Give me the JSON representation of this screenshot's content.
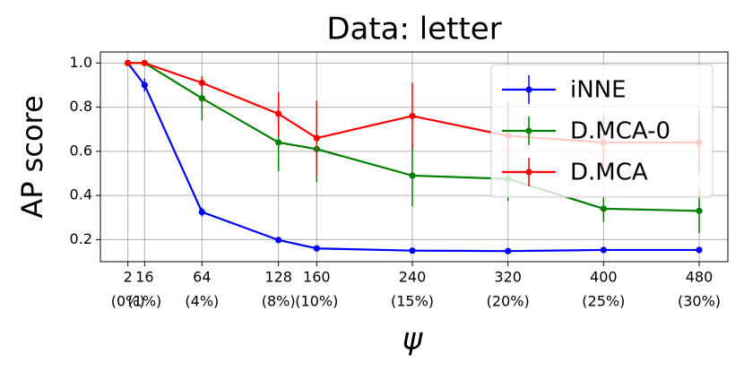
{
  "chart_data": {
    "type": "line",
    "title": "Data: letter",
    "x_label": "ψ",
    "y_label": "AP score",
    "x": [
      2,
      16,
      64,
      128,
      160,
      240,
      320,
      400,
      480
    ],
    "series": [
      {
        "name": "iNNE",
        "color": "#0000ff",
        "values": [
          1.0,
          0.9,
          0.325,
          0.198,
          0.16,
          0.15,
          0.148,
          0.153,
          0.153
        ],
        "errors": [
          0,
          0.03,
          0.02,
          0.01,
          0.01,
          0.01,
          0.01,
          0.01,
          0.01
        ]
      },
      {
        "name": "D.MCA-0",
        "color": "#008000",
        "values": [
          1.0,
          1.0,
          0.84,
          0.64,
          0.61,
          0.49,
          0.475,
          0.34,
          0.33
        ],
        "errors": [
          0,
          0.01,
          0.1,
          0.13,
          0.15,
          0.14,
          0.1,
          0.06,
          0.1
        ]
      },
      {
        "name": "D.MCA",
        "color": "#ff0000",
        "values": [
          1.0,
          1.0,
          0.91,
          0.77,
          0.66,
          0.76,
          0.67,
          0.64,
          0.64
        ],
        "errors": [
          0,
          0.01,
          0.03,
          0.1,
          0.17,
          0.15,
          0.15,
          0.12,
          0.14
        ]
      }
    ],
    "xlim": [
      -21,
      504
    ],
    "ylim": [
      0.1,
      1.05
    ],
    "xticks": [
      2,
      16,
      64,
      128,
      160,
      240,
      320,
      400,
      480
    ],
    "xtick_sublabels": [
      "(0%)",
      "(1%)",
      "(4%)",
      "(8%)",
      "(10%)",
      "(15%)",
      "(20%)",
      "(25%)",
      "(30%)"
    ],
    "yticks": [
      {
        "value": 0.2,
        "label": "0.2"
      },
      {
        "value": 0.4,
        "label": "0.4"
      },
      {
        "value": 0.6,
        "label": "0.6"
      },
      {
        "value": 0.8,
        "label": "0.8"
      },
      {
        "value": 1.0,
        "label": "1.0"
      }
    ],
    "grid": true,
    "legend": "upper right"
  }
}
